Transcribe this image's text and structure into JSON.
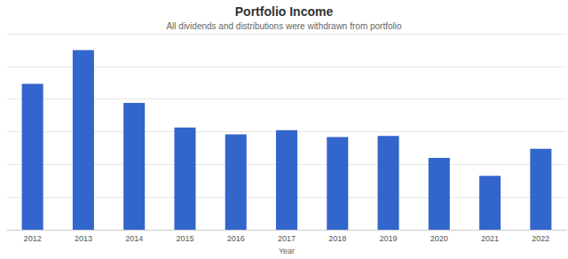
{
  "chart_data": {
    "type": "bar",
    "title": "Portfolio Income",
    "subtitle": "All dividends and distributions were withdrawn from portfolio",
    "x_label": "Year",
    "categories": [
      "2012",
      "2013",
      "2014",
      "2015",
      "2016",
      "2017",
      "2018",
      "2019",
      "2020",
      "2021",
      "2022"
    ],
    "values": [
      4.47,
      5.5,
      3.88,
      3.13,
      2.92,
      3.05,
      2.84,
      2.87,
      2.2,
      1.65,
      2.48
    ],
    "color": "#3366cc",
    "ylim": [
      0,
      6
    ],
    "yticks": [
      0,
      1,
      2,
      3,
      4,
      5,
      6
    ],
    "grid": true,
    "tick_labels": "x"
  }
}
